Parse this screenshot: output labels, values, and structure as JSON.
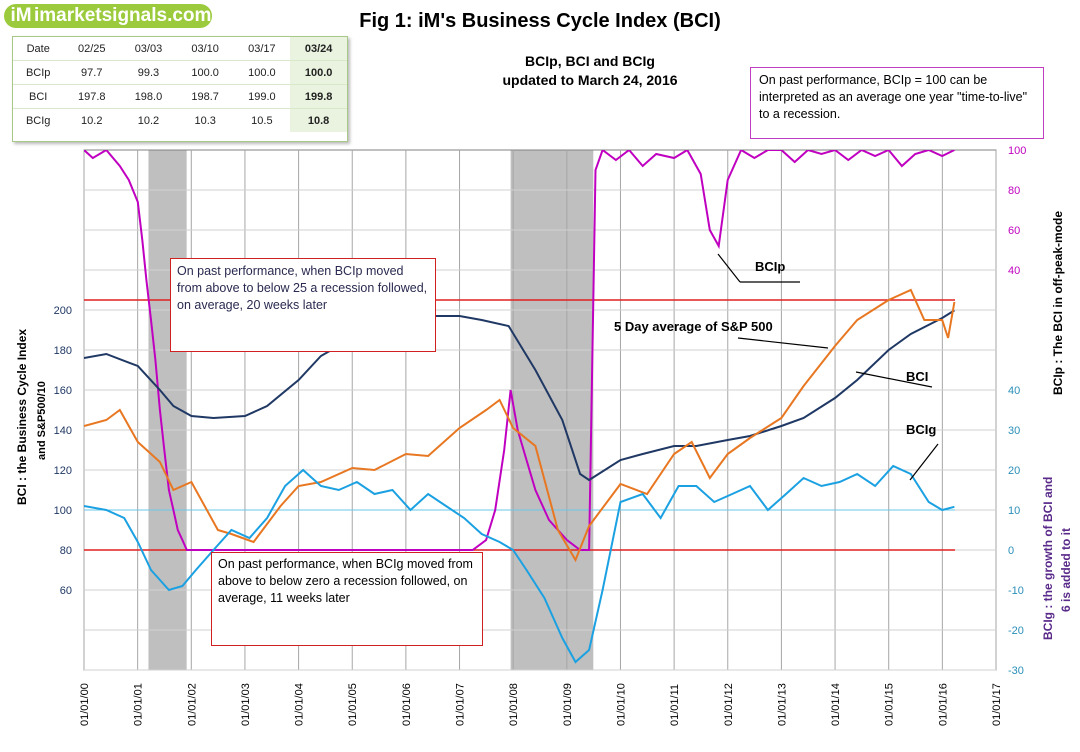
{
  "logo": {
    "mark": "iM",
    "text": "imarketsignals.com"
  },
  "title": "Fig 1:  iM's Business Cycle Index (BCI)",
  "subtitle": {
    "line1": "BCIp, BCI and BCIg",
    "line2": "updated to March 24, 2016"
  },
  "table": {
    "headers": [
      "Date",
      "02/25",
      "03/03",
      "03/10",
      "03/17",
      "03/24"
    ],
    "rows": [
      {
        "label": "BCIp",
        "values": [
          "97.7",
          "99.3",
          "100.0",
          "100.0",
          "100.0"
        ]
      },
      {
        "label": "BCI",
        "values": [
          "197.8",
          "198.0",
          "198.7",
          "199.0",
          "199.8"
        ]
      },
      {
        "label": "BCIg",
        "values": [
          "10.2",
          "10.2",
          "10.3",
          "10.5",
          "10.8"
        ]
      }
    ]
  },
  "notes": {
    "bcip_ttl": "On past performance, BCIp = 100 can be interpreted as an average one year \"time-to-live\" to a recession.",
    "bcip_rule": "On past performance,  when BCIp moved from above to below 25 a recession followed, on average, 20 weeks later",
    "bcig_rule": "On past performance,  when BCIg moved from above to below zero a recession followed, on average, 11 weeks later"
  },
  "chart_data": {
    "type": "line",
    "x_type": "date",
    "x_ticks": [
      "01/01/00",
      "01/01/01",
      "01/01/02",
      "01/01/03",
      "01/01/04",
      "01/01/05",
      "01/01/06",
      "01/01/07",
      "01/01/08",
      "01/01/09",
      "01/01/10",
      "01/01/11",
      "01/01/12",
      "01/01/13",
      "01/01/14",
      "01/01/15",
      "01/01/16",
      "01/01/17"
    ],
    "left_axis": {
      "label_line1": "BCI : the Business  Cycle  Index",
      "label_line2": "and   S&P500/10",
      "ticks": [
        60,
        80,
        100,
        120,
        140,
        160,
        180,
        200
      ]
    },
    "right_axis": {
      "label": "BCIp :  The BCI in off-peak-mode",
      "ticks": [
        40,
        60,
        80,
        100
      ]
    },
    "right_axis2": {
      "label_line1": "BCIg :  the growth of BCI and",
      "label_line2": "6 is added to it",
      "ticks": [
        -30,
        -20,
        -10,
        0,
        10,
        20,
        30,
        40
      ]
    },
    "recessions": [
      [
        "2001-03-15",
        "2001-11-30"
      ],
      [
        "2007-12-15",
        "2009-06-30"
      ]
    ],
    "thresholds": {
      "bcip": 25,
      "bcig": 0
    },
    "series": [
      {
        "name": "BCIp",
        "color": "#c000c0",
        "axis": "bcip",
        "x": [
          "2000-01-01",
          "2000-03-01",
          "2000-06-01",
          "2000-09-01",
          "2000-11-01",
          "2001-01-01",
          "2001-02-01",
          "2001-03-01",
          "2001-04-01",
          "2001-05-01",
          "2001-06-01",
          "2001-07-01",
          "2001-08-01",
          "2001-09-01",
          "2001-10-01",
          "2001-11-01",
          "2001-12-01",
          "2002-02-01",
          "2002-05-01",
          "2002-08-01",
          "2002-11-01",
          "2003-02-01",
          "2003-05-01",
          "2003-08-01",
          "2003-11-01",
          "2004-02-01",
          "2004-06-01",
          "2004-09-01",
          "2005-01-01",
          "2005-04-01",
          "2005-07-01",
          "2005-10-01",
          "2006-01-01",
          "2006-04-01",
          "2006-07-01",
          "2006-10-01",
          "2007-01-01",
          "2007-04-01",
          "2007-07-01",
          "2007-09-01",
          "2007-11-01",
          "2007-12-15",
          "2008-02-01",
          "2008-04-01",
          "2008-06-01",
          "2008-09-01",
          "2009-01-01",
          "2009-04-01",
          "2009-06-01",
          "2009-07-15",
          "2009-09-01",
          "2009-12-01",
          "2010-03-01",
          "2010-06-01",
          "2010-09-01",
          "2011-01-01",
          "2011-04-01",
          "2011-07-01",
          "2011-09-01",
          "2011-11-01",
          "2012-01-01",
          "2012-04-01",
          "2012-07-01",
          "2012-10-01",
          "2013-01-01",
          "2013-04-01",
          "2013-07-01",
          "2013-10-01",
          "2014-01-01",
          "2014-04-01",
          "2014-07-01",
          "2014-10-01",
          "2015-01-01",
          "2015-04-01",
          "2015-07-01",
          "2015-10-01",
          "2016-01-01",
          "2016-03-24"
        ],
        "values": [
          100,
          96,
          100,
          92,
          85,
          74,
          55,
          35,
          15,
          -5,
          -30,
          -50,
          -70,
          -80,
          -90,
          -95,
          -100,
          -100,
          -100,
          -100,
          -100,
          -100,
          -100,
          -100,
          -100,
          -100,
          -100,
          -100,
          -100,
          -100,
          -100,
          -100,
          -100,
          -100,
          -100,
          -100,
          -100,
          -100,
          -95,
          -80,
          -50,
          -20,
          -40,
          -55,
          -70,
          -85,
          -95,
          -100,
          -100,
          90,
          100,
          95,
          100,
          92,
          98,
          96,
          100,
          88,
          60,
          52,
          85,
          100,
          96,
          100,
          100,
          94,
          100,
          98,
          100,
          95,
          100,
          97,
          100,
          92,
          98,
          100,
          97,
          100
        ]
      },
      {
        "name": "BCI",
        "color": "#1f3864",
        "axis": "bci",
        "x": [
          "2000-01-01",
          "2000-06-01",
          "2001-01-01",
          "2001-06-01",
          "2001-09-01",
          "2002-01-01",
          "2002-06-01",
          "2003-01-01",
          "2003-06-01",
          "2004-01-01",
          "2004-06-01",
          "2005-01-01",
          "2005-06-01",
          "2006-01-01",
          "2006-06-01",
          "2007-01-01",
          "2007-06-01",
          "2007-12-01",
          "2008-06-01",
          "2008-12-01",
          "2009-04-01",
          "2009-06-01",
          "2010-01-01",
          "2010-06-01",
          "2011-01-01",
          "2011-06-01",
          "2012-01-01",
          "2012-06-01",
          "2013-01-01",
          "2013-06-01",
          "2014-01-01",
          "2014-06-01",
          "2015-01-01",
          "2015-06-01",
          "2016-01-01",
          "2016-03-24"
        ],
        "values": [
          176,
          178,
          172,
          160,
          152,
          147,
          146,
          147,
          152,
          165,
          177,
          186,
          190,
          195,
          197,
          197,
          195,
          192,
          170,
          145,
          118,
          115,
          125,
          128,
          132,
          132,
          135,
          137,
          142,
          146,
          156,
          165,
          180,
          188,
          196,
          199.8
        ]
      },
      {
        "name": "S&P 500 (5 day average)",
        "color": "#e87722",
        "axis": "bci",
        "x": [
          "2000-01-01",
          "2000-06-01",
          "2000-09-01",
          "2001-01-01",
          "2001-06-01",
          "2001-09-01",
          "2002-01-01",
          "2002-07-01",
          "2002-10-01",
          "2003-03-01",
          "2003-09-01",
          "2004-01-01",
          "2004-06-01",
          "2005-01-01",
          "2005-06-01",
          "2006-01-01",
          "2006-06-01",
          "2007-01-01",
          "2007-07-01",
          "2007-10-01",
          "2008-01-01",
          "2008-06-01",
          "2008-11-01",
          "2009-03-01",
          "2009-06-01",
          "2010-01-01",
          "2010-07-01",
          "2011-01-01",
          "2011-05-01",
          "2011-09-01",
          "2012-01-01",
          "2012-06-01",
          "2013-01-01",
          "2013-06-01",
          "2014-01-01",
          "2014-06-01",
          "2015-01-01",
          "2015-06-01",
          "2015-09-01",
          "2016-01-01",
          "2016-02-10",
          "2016-03-24"
        ],
        "values": [
          142,
          145,
          150,
          134,
          124,
          110,
          114,
          90,
          88,
          84,
          102,
          112,
          114,
          121,
          120,
          128,
          127,
          141,
          150,
          155,
          141,
          132,
          90,
          75,
          92,
          113,
          108,
          128,
          134,
          116,
          128,
          136,
          146,
          162,
          182,
          195,
          205,
          210,
          195,
          195,
          186,
          204
        ]
      },
      {
        "name": "BCIg",
        "color": "#1ba1e2",
        "axis": "bcig",
        "x": [
          "2000-01-01",
          "2000-06-01",
          "2000-10-01",
          "2001-01-01",
          "2001-04-01",
          "2001-08-01",
          "2001-11-01",
          "2002-02-01",
          "2002-06-01",
          "2002-10-01",
          "2003-02-01",
          "2003-06-01",
          "2003-10-01",
          "2004-02-01",
          "2004-06-01",
          "2004-10-01",
          "2005-02-01",
          "2005-06-01",
          "2005-10-01",
          "2006-02-01",
          "2006-06-01",
          "2006-10-01",
          "2007-02-01",
          "2007-06-01",
          "2007-10-01",
          "2008-01-01",
          "2008-04-01",
          "2008-08-01",
          "2008-12-01",
          "2009-03-01",
          "2009-06-01",
          "2009-09-01",
          "2010-01-01",
          "2010-06-01",
          "2010-10-01",
          "2011-02-01",
          "2011-06-01",
          "2011-10-01",
          "2012-02-01",
          "2012-06-01",
          "2012-10-01",
          "2013-02-01",
          "2013-06-01",
          "2013-10-01",
          "2014-02-01",
          "2014-06-01",
          "2014-10-01",
          "2015-02-01",
          "2015-06-01",
          "2015-10-01",
          "2016-01-01",
          "2016-03-24"
        ],
        "values": [
          11,
          10,
          8,
          2,
          -5,
          -10,
          -9,
          -5,
          0,
          5,
          3,
          8,
          16,
          20,
          16,
          15,
          17,
          14,
          15,
          10,
          14,
          11,
          8,
          4,
          2,
          0,
          -5,
          -12,
          -22,
          -28,
          -25,
          -10,
          12,
          14,
          8,
          16,
          16,
          12,
          14,
          16,
          10,
          14,
          18,
          16,
          17,
          19,
          16,
          21,
          19,
          12,
          10,
          10.8
        ]
      }
    ],
    "annotations": {
      "bcip": "BCIp",
      "sp500": "5 Day average of  S&P 500",
      "bci": "BCI",
      "bcig": "BCIg"
    }
  }
}
